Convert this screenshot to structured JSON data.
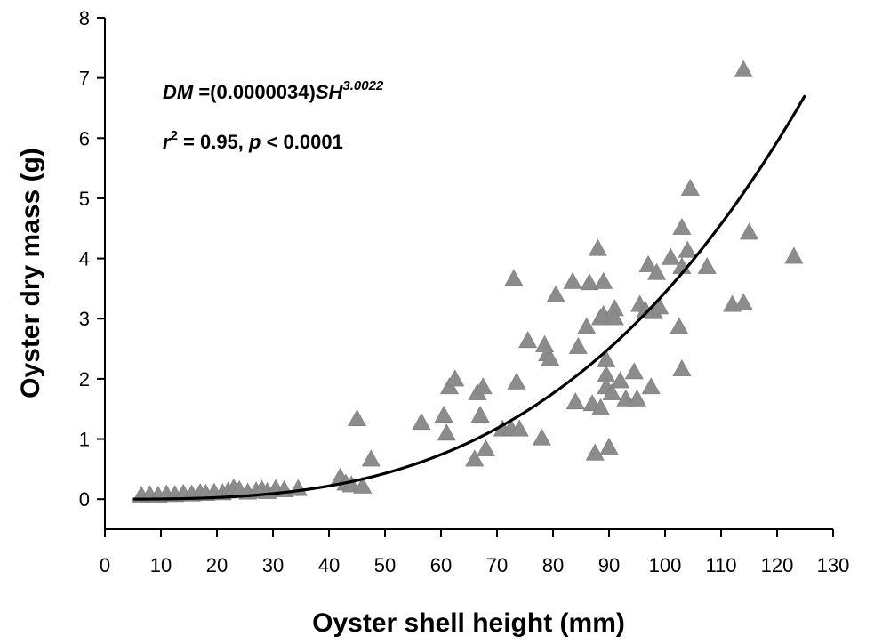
{
  "chart_data": {
    "type": "scatter",
    "xlabel": "Oyster shell height (mm)",
    "ylabel": "Oyster dry mass (g)",
    "xlim": [
      0,
      130
    ],
    "ylim": [
      -0.5,
      8
    ],
    "x_ticks": [
      0,
      10,
      20,
      30,
      40,
      50,
      60,
      70,
      80,
      90,
      100,
      110,
      120,
      130
    ],
    "y_ticks": [
      0,
      1,
      2,
      3,
      4,
      5,
      6,
      7,
      8
    ],
    "grid": false,
    "marker": "triangle",
    "marker_color": "#8c8c8c",
    "annotations": {
      "equation": {
        "lhs": "DM",
        "mid": " =(0.0000034)",
        "var": "SH",
        "exponent": "3.0022"
      },
      "stats": {
        "r": "r",
        "r_exp": "2",
        "r_rest": " = 0.95, ",
        "p": "p",
        "p_rest": " < 0.0001"
      }
    },
    "fit": {
      "coefficient": 3.4e-06,
      "exponent": 3.0022,
      "x_range": [
        5,
        125
      ]
    },
    "points": [
      {
        "x": 6.5,
        "y": 0.05
      },
      {
        "x": 8,
        "y": 0.06
      },
      {
        "x": 9.5,
        "y": 0.05
      },
      {
        "x": 11,
        "y": 0.07
      },
      {
        "x": 12.5,
        "y": 0.06
      },
      {
        "x": 14,
        "y": 0.08
      },
      {
        "x": 15.5,
        "y": 0.07
      },
      {
        "x": 17,
        "y": 0.09
      },
      {
        "x": 18,
        "y": 0.08
      },
      {
        "x": 19.5,
        "y": 0.1
      },
      {
        "x": 21,
        "y": 0.09
      },
      {
        "x": 22,
        "y": 0.12
      },
      {
        "x": 23,
        "y": 0.17
      },
      {
        "x": 24,
        "y": 0.14
      },
      {
        "x": 25.5,
        "y": 0.1
      },
      {
        "x": 27,
        "y": 0.12
      },
      {
        "x": 28,
        "y": 0.15
      },
      {
        "x": 29,
        "y": 0.11
      },
      {
        "x": 30.5,
        "y": 0.16
      },
      {
        "x": 32,
        "y": 0.14
      },
      {
        "x": 34.5,
        "y": 0.16
      },
      {
        "x": 42,
        "y": 0.35
      },
      {
        "x": 43,
        "y": 0.25
      },
      {
        "x": 44,
        "y": 0.22
      },
      {
        "x": 45,
        "y": 1.32
      },
      {
        "x": 46,
        "y": 0.2
      },
      {
        "x": 47.5,
        "y": 0.65
      },
      {
        "x": 56.5,
        "y": 1.26
      },
      {
        "x": 60.5,
        "y": 1.38
      },
      {
        "x": 61,
        "y": 1.08
      },
      {
        "x": 61.5,
        "y": 1.85
      },
      {
        "x": 62.5,
        "y": 1.98
      },
      {
        "x": 66,
        "y": 0.65
      },
      {
        "x": 66.5,
        "y": 1.75
      },
      {
        "x": 67,
        "y": 1.38
      },
      {
        "x": 67.5,
        "y": 1.85
      },
      {
        "x": 68,
        "y": 0.82
      },
      {
        "x": 71,
        "y": 1.15
      },
      {
        "x": 72.5,
        "y": 1.16
      },
      {
        "x": 73,
        "y": 3.65
      },
      {
        "x": 73.5,
        "y": 1.93
      },
      {
        "x": 74,
        "y": 1.15
      },
      {
        "x": 75.5,
        "y": 2.62
      },
      {
        "x": 78,
        "y": 1.0
      },
      {
        "x": 78.5,
        "y": 2.55
      },
      {
        "x": 79,
        "y": 2.4
      },
      {
        "x": 79.5,
        "y": 2.32
      },
      {
        "x": 80.5,
        "y": 3.38
      },
      {
        "x": 83.5,
        "y": 3.6
      },
      {
        "x": 84,
        "y": 1.6
      },
      {
        "x": 84.5,
        "y": 2.52
      },
      {
        "x": 86,
        "y": 2.85
      },
      {
        "x": 86.5,
        "y": 3.58
      },
      {
        "x": 87,
        "y": 1.57
      },
      {
        "x": 87.5,
        "y": 0.75
      },
      {
        "x": 88,
        "y": 4.15
      },
      {
        "x": 88.5,
        "y": 3.0
      },
      {
        "x": 88.5,
        "y": 1.5
      },
      {
        "x": 89,
        "y": 3.6
      },
      {
        "x": 89,
        "y": 3.05
      },
      {
        "x": 89.5,
        "y": 2.3
      },
      {
        "x": 89.5,
        "y": 2.05
      },
      {
        "x": 89.5,
        "y": 1.85
      },
      {
        "x": 90,
        "y": 0.85
      },
      {
        "x": 90.5,
        "y": 1.75
      },
      {
        "x": 91,
        "y": 3.15
      },
      {
        "x": 91,
        "y": 3.0
      },
      {
        "x": 92,
        "y": 1.95
      },
      {
        "x": 93,
        "y": 1.65
      },
      {
        "x": 94.5,
        "y": 2.1
      },
      {
        "x": 95,
        "y": 1.65
      },
      {
        "x": 95.5,
        "y": 3.22
      },
      {
        "x": 96.5,
        "y": 3.12
      },
      {
        "x": 97,
        "y": 3.88
      },
      {
        "x": 97.5,
        "y": 1.85
      },
      {
        "x": 98,
        "y": 3.1
      },
      {
        "x": 98.5,
        "y": 3.75
      },
      {
        "x": 99,
        "y": 3.18
      },
      {
        "x": 101,
        "y": 4.0
      },
      {
        "x": 102.5,
        "y": 2.85
      },
      {
        "x": 103,
        "y": 4.5
      },
      {
        "x": 103,
        "y": 3.85
      },
      {
        "x": 103,
        "y": 2.15
      },
      {
        "x": 104,
        "y": 4.12
      },
      {
        "x": 104.5,
        "y": 5.15
      },
      {
        "x": 107.5,
        "y": 3.85
      },
      {
        "x": 112,
        "y": 3.22
      },
      {
        "x": 114,
        "y": 7.12
      },
      {
        "x": 114,
        "y": 3.25
      },
      {
        "x": 115,
        "y": 4.42
      },
      {
        "x": 123,
        "y": 4.02
      }
    ]
  }
}
